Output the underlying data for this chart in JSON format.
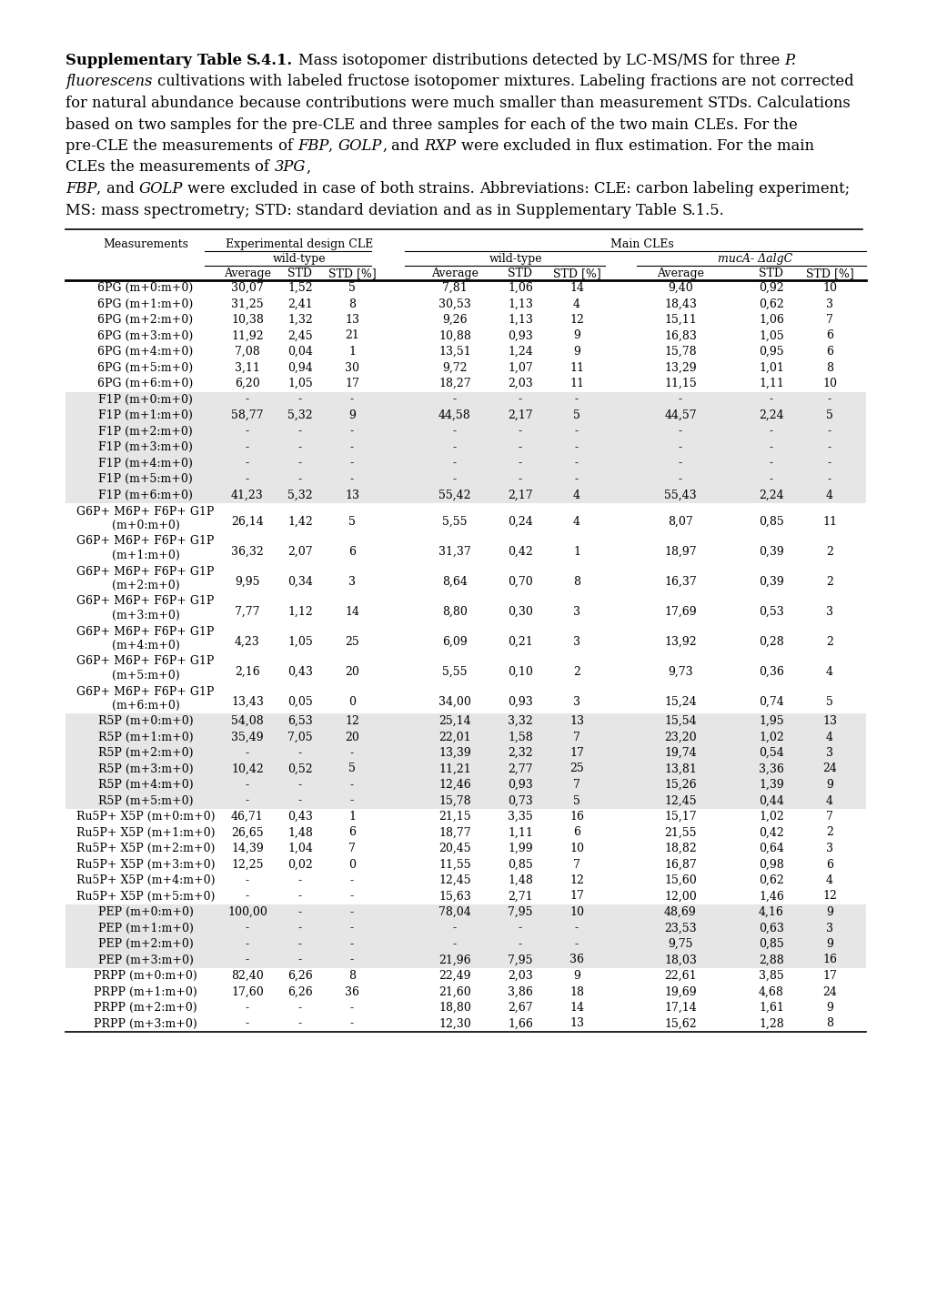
{
  "rows": [
    [
      "6PG (m+0:m+0)",
      "30,07",
      "1,52",
      "5",
      "7,81",
      "1,06",
      "14",
      "9,40",
      "0,92",
      "10",
      false
    ],
    [
      "6PG (m+1:m+0)",
      "31,25",
      "2,41",
      "8",
      "30,53",
      "1,13",
      "4",
      "18,43",
      "0,62",
      "3",
      false
    ],
    [
      "6PG (m+2:m+0)",
      "10,38",
      "1,32",
      "13",
      "9,26",
      "1,13",
      "12",
      "15,11",
      "1,06",
      "7",
      false
    ],
    [
      "6PG (m+3:m+0)",
      "11,92",
      "2,45",
      "21",
      "10,88",
      "0,93",
      "9",
      "16,83",
      "1,05",
      "6",
      false
    ],
    [
      "6PG (m+4:m+0)",
      "7,08",
      "0,04",
      "1",
      "13,51",
      "1,24",
      "9",
      "15,78",
      "0,95",
      "6",
      false
    ],
    [
      "6PG (m+5:m+0)",
      "3,11",
      "0,94",
      "30",
      "9,72",
      "1,07",
      "11",
      "13,29",
      "1,01",
      "8",
      false
    ],
    [
      "6PG (m+6:m+0)",
      "6,20",
      "1,05",
      "17",
      "18,27",
      "2,03",
      "11",
      "11,15",
      "1,11",
      "10",
      false
    ],
    [
      "F1P (m+0:m+0)",
      "-",
      "-",
      "-",
      "-",
      "-",
      "-",
      "-",
      "-",
      "-",
      true
    ],
    [
      "F1P (m+1:m+0)",
      "58,77",
      "5,32",
      "9",
      "44,58",
      "2,17",
      "5",
      "44,57",
      "2,24",
      "5",
      true
    ],
    [
      "F1P (m+2:m+0)",
      "-",
      "-",
      "-",
      "-",
      "-",
      "-",
      "-",
      "-",
      "-",
      true
    ],
    [
      "F1P (m+3:m+0)",
      "-",
      "-",
      "-",
      "-",
      "-",
      "-",
      "-",
      "-",
      "-",
      true
    ],
    [
      "F1P (m+4:m+0)",
      "-",
      "-",
      "-",
      "-",
      "-",
      "-",
      "-",
      "-",
      "-",
      true
    ],
    [
      "F1P (m+5:m+0)",
      "-",
      "-",
      "-",
      "-",
      "-",
      "-",
      "-",
      "-",
      "-",
      true
    ],
    [
      "F1P (m+6:m+0)",
      "41,23",
      "5,32",
      "13",
      "55,42",
      "2,17",
      "4",
      "55,43",
      "2,24",
      "4",
      true
    ],
    [
      "G6P+ M6P+ F6P+ G1P|(m+0:m+0)",
      "26,14",
      "1,42",
      "5",
      "5,55",
      "0,24",
      "4",
      "8,07",
      "0,85",
      "11",
      false
    ],
    [
      "G6P+ M6P+ F6P+ G1P|(m+1:m+0)",
      "36,32",
      "2,07",
      "6",
      "31,37",
      "0,42",
      "1",
      "18,97",
      "0,39",
      "2",
      false
    ],
    [
      "G6P+ M6P+ F6P+ G1P|(m+2:m+0)",
      "9,95",
      "0,34",
      "3",
      "8,64",
      "0,70",
      "8",
      "16,37",
      "0,39",
      "2",
      false
    ],
    [
      "G6P+ M6P+ F6P+ G1P|(m+3:m+0)",
      "7,77",
      "1,12",
      "14",
      "8,80",
      "0,30",
      "3",
      "17,69",
      "0,53",
      "3",
      false
    ],
    [
      "G6P+ M6P+ F6P+ G1P|(m+4:m+0)",
      "4,23",
      "1,05",
      "25",
      "6,09",
      "0,21",
      "3",
      "13,92",
      "0,28",
      "2",
      false
    ],
    [
      "G6P+ M6P+ F6P+ G1P|(m+5:m+0)",
      "2,16",
      "0,43",
      "20",
      "5,55",
      "0,10",
      "2",
      "9,73",
      "0,36",
      "4",
      false
    ],
    [
      "G6P+ M6P+ F6P+ G1P|(m+6:m+0)",
      "13,43",
      "0,05",
      "0",
      "34,00",
      "0,93",
      "3",
      "15,24",
      "0,74",
      "5",
      false
    ],
    [
      "R5P (m+0:m+0)",
      "54,08",
      "6,53",
      "12",
      "25,14",
      "3,32",
      "13",
      "15,54",
      "1,95",
      "13",
      true
    ],
    [
      "R5P (m+1:m+0)",
      "35,49",
      "7,05",
      "20",
      "22,01",
      "1,58",
      "7",
      "23,20",
      "1,02",
      "4",
      true
    ],
    [
      "R5P (m+2:m+0)",
      "-",
      "-",
      "-",
      "13,39",
      "2,32",
      "17",
      "19,74",
      "0,54",
      "3",
      true
    ],
    [
      "R5P (m+3:m+0)",
      "10,42",
      "0,52",
      "5",
      "11,21",
      "2,77",
      "25",
      "13,81",
      "3,36",
      "24",
      true
    ],
    [
      "R5P (m+4:m+0)",
      "-",
      "-",
      "-",
      "12,46",
      "0,93",
      "7",
      "15,26",
      "1,39",
      "9",
      true
    ],
    [
      "R5P (m+5:m+0)",
      "-",
      "-",
      "-",
      "15,78",
      "0,73",
      "5",
      "12,45",
      "0,44",
      "4",
      true
    ],
    [
      "Ru5P+ X5P (m+0:m+0)",
      "46,71",
      "0,43",
      "1",
      "21,15",
      "3,35",
      "16",
      "15,17",
      "1,02",
      "7",
      false
    ],
    [
      "Ru5P+ X5P (m+1:m+0)",
      "26,65",
      "1,48",
      "6",
      "18,77",
      "1,11",
      "6",
      "21,55",
      "0,42",
      "2",
      false
    ],
    [
      "Ru5P+ X5P (m+2:m+0)",
      "14,39",
      "1,04",
      "7",
      "20,45",
      "1,99",
      "10",
      "18,82",
      "0,64",
      "3",
      false
    ],
    [
      "Ru5P+ X5P (m+3:m+0)",
      "12,25",
      "0,02",
      "0",
      "11,55",
      "0,85",
      "7",
      "16,87",
      "0,98",
      "6",
      false
    ],
    [
      "Ru5P+ X5P (m+4:m+0)",
      "-",
      "-",
      "-",
      "12,45",
      "1,48",
      "12",
      "15,60",
      "0,62",
      "4",
      false
    ],
    [
      "Ru5P+ X5P (m+5:m+0)",
      "-",
      "-",
      "-",
      "15,63",
      "2,71",
      "17",
      "12,00",
      "1,46",
      "12",
      false
    ],
    [
      "PEP (m+0:m+0)",
      "100,00",
      "-",
      "-",
      "78,04",
      "7,95",
      "10",
      "48,69",
      "4,16",
      "9",
      true
    ],
    [
      "PEP (m+1:m+0)",
      "-",
      "-",
      "-",
      "-",
      "-",
      "-",
      "23,53",
      "0,63",
      "3",
      true
    ],
    [
      "PEP (m+2:m+0)",
      "-",
      "-",
      "-",
      "-",
      "-",
      "-",
      "9,75",
      "0,85",
      "9",
      true
    ],
    [
      "PEP (m+3:m+0)",
      "-",
      "-",
      "-",
      "21,96",
      "7,95",
      "36",
      "18,03",
      "2,88",
      "16",
      true
    ],
    [
      "PRPP (m+0:m+0)",
      "82,40",
      "6,26",
      "8",
      "22,49",
      "2,03",
      "9",
      "22,61",
      "3,85",
      "17",
      false
    ],
    [
      "PRPP (m+1:m+0)",
      "17,60",
      "6,26",
      "36",
      "21,60",
      "3,86",
      "18",
      "19,69",
      "4,68",
      "24",
      false
    ],
    [
      "PRPP (m+2:m+0)",
      "-",
      "-",
      "-",
      "18,80",
      "2,67",
      "14",
      "17,14",
      "1,61",
      "9",
      false
    ],
    [
      "PRPP (m+3:m+0)",
      "-",
      "-",
      "-",
      "12,30",
      "1,66",
      "13",
      "15,62",
      "1,28",
      "8",
      false
    ]
  ],
  "shade_color": "#e6e6e6"
}
